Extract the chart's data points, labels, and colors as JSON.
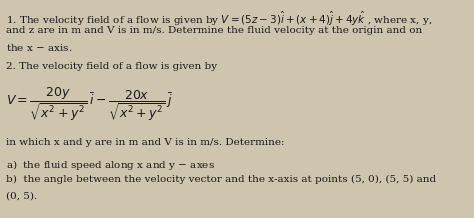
{
  "background_color": "#cfc5ae",
  "figsize": [
    4.74,
    2.18
  ],
  "dpi": 100,
  "fontsize": 7.5,
  "text_color": "#1a1a1a",
  "line1": "1. The velocity field of a flow is given by $V=(5z-3)\\hat{i}+(x+4)\\hat{j}+4y\\hat{k}$ , where x, y,",
  "line2": "and z are in m and V is in m/s. Determine the fluid velocity at the origin and on",
  "line3": "the x $-$ axis.",
  "line4": "2. The velocity field of a flow is given by",
  "line5": "in which x and y are in m and V is in m/s. Determine:",
  "line6a": "a)  the fluid speed along x and y $-$ axes",
  "line6b": "b)  the angle between the velocity vector and the x-axis at points (5, 0), (5, 5) and",
  "line6c": "(0, 5).",
  "eq_label": "$V =$",
  "eq_frac1_num": "$20y$",
  "eq_frac1_den": "$\\sqrt{x^2+y^2}$",
  "eq_frac2_num": "$20x$",
  "eq_frac2_den": "$\\sqrt{x^2+y^2}$",
  "eq_i": "$\\bar{i}$",
  "eq_minus": "$-$",
  "eq_j": "$\\bar{j}$"
}
